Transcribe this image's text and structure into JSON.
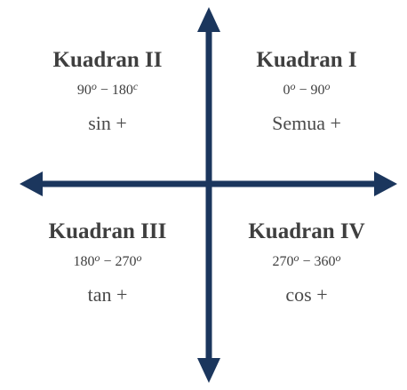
{
  "colors": {
    "axis": "#1b365d",
    "text": "#3f3f3f"
  },
  "quadrants": [
    {
      "id": "q1",
      "title": "Kuadran I",
      "range_start": "0",
      "range_start_unit": "o",
      "range_sep": " − ",
      "range_end": "90",
      "range_end_unit": "o",
      "sign": "Semua +"
    },
    {
      "id": "q2",
      "title": "Kuadran II",
      "range_start": "90",
      "range_start_unit": "o",
      "range_sep": " − ",
      "range_end": "180",
      "range_end_unit": "c",
      "sign": "sin +"
    },
    {
      "id": "q3",
      "title": "Kuadran III",
      "range_start": "180",
      "range_start_unit": "o",
      "range_sep": " − ",
      "range_end": "270",
      "range_end_unit": "o",
      "sign": "tan +"
    },
    {
      "id": "q4",
      "title": "Kuadran IV",
      "range_start": "270",
      "range_start_unit": "o",
      "range_sep": " − ",
      "range_end": "360",
      "range_end_unit": "o",
      "sign": "cos +"
    }
  ]
}
